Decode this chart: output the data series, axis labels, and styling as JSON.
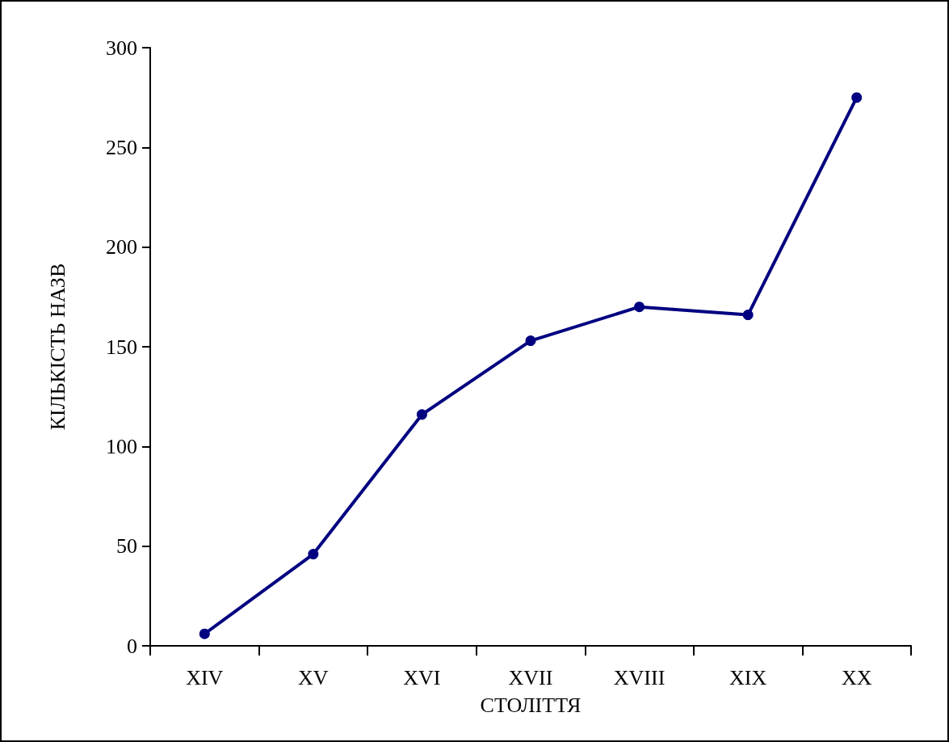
{
  "chart_data": {
    "type": "line",
    "xlabel": "СТОЛІТТЯ",
    "ylabel": "КІЛЬКІСТЬ НАЗВ",
    "categories": [
      "XIV",
      "XV",
      "XVI",
      "XVII",
      "XVIII",
      "XIX",
      "XX"
    ],
    "series": [
      {
        "color": "#000080",
        "values": [
          6,
          46,
          116,
          153,
          170,
          166,
          275
        ]
      }
    ],
    "ylim": [
      0,
      300
    ],
    "yticks": [
      0,
      50,
      100,
      150,
      200,
      250,
      300
    ],
    "grid": false,
    "marker": "circle",
    "line_style": "solid"
  }
}
